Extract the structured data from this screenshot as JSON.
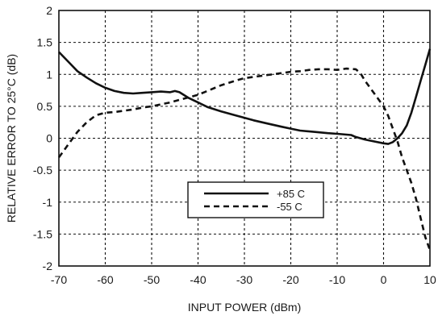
{
  "chart_data": {
    "type": "line",
    "xlabel": "INPUT POWER (dBm)",
    "ylabel": "RELATIVE ERROR TO 25°C  (dB)",
    "xlim": [
      -70,
      10
    ],
    "ylim": [
      -2,
      2
    ],
    "x_ticks": [
      -70,
      -60,
      -50,
      -40,
      -30,
      -20,
      -10,
      0,
      10
    ],
    "y_ticks": [
      -2,
      -1.5,
      -1,
      -0.5,
      0,
      0.5,
      1,
      1.5,
      2
    ],
    "x_tick_labels": [
      "-70",
      "-60",
      "-50",
      "-40",
      "-30",
      "-20",
      "-10",
      "0",
      "10"
    ],
    "y_tick_labels": [
      "-2",
      "-1.5",
      "-1",
      "-0.5",
      "0",
      "0.5",
      "1",
      "1.5",
      "2"
    ],
    "grid": "dashed",
    "legend_position": "lower-center",
    "series": [
      {
        "name": "+85 C",
        "style": "solid",
        "color": "#111111",
        "points": [
          [
            -70,
            1.35
          ],
          [
            -68,
            1.2
          ],
          [
            -66,
            1.05
          ],
          [
            -64,
            0.95
          ],
          [
            -62,
            0.86
          ],
          [
            -60,
            0.79
          ],
          [
            -58,
            0.74
          ],
          [
            -56,
            0.71
          ],
          [
            -54,
            0.7
          ],
          [
            -52,
            0.71
          ],
          [
            -50,
            0.72
          ],
          [
            -48,
            0.73
          ],
          [
            -46,
            0.72
          ],
          [
            -45,
            0.74
          ],
          [
            -44,
            0.72
          ],
          [
            -42,
            0.63
          ],
          [
            -40,
            0.56
          ],
          [
            -38,
            0.49
          ],
          [
            -35,
            0.42
          ],
          [
            -32,
            0.36
          ],
          [
            -30,
            0.32
          ],
          [
            -28,
            0.28
          ],
          [
            -25,
            0.23
          ],
          [
            -22,
            0.18
          ],
          [
            -20,
            0.15
          ],
          [
            -18,
            0.12
          ],
          [
            -15,
            0.1
          ],
          [
            -12,
            0.08
          ],
          [
            -10,
            0.07
          ],
          [
            -7,
            0.05
          ],
          [
            -6,
            0.02
          ],
          [
            -4,
            -0.02
          ],
          [
            -2,
            -0.05
          ],
          [
            0,
            -0.08
          ],
          [
            1,
            -0.09
          ],
          [
            2,
            -0.06
          ],
          [
            3,
            0.0
          ],
          [
            4,
            0.08
          ],
          [
            5,
            0.2
          ],
          [
            6,
            0.4
          ],
          [
            7,
            0.65
          ],
          [
            8,
            0.9
          ],
          [
            9,
            1.15
          ],
          [
            10,
            1.4
          ]
        ]
      },
      {
        "name": "-55 C",
        "style": "dashed",
        "color": "#111111",
        "points": [
          [
            -70,
            -0.3
          ],
          [
            -68,
            -0.1
          ],
          [
            -66,
            0.1
          ],
          [
            -64,
            0.25
          ],
          [
            -62,
            0.36
          ],
          [
            -60,
            0.4
          ],
          [
            -58,
            0.41
          ],
          [
            -56,
            0.43
          ],
          [
            -54,
            0.45
          ],
          [
            -52,
            0.48
          ],
          [
            -50,
            0.5
          ],
          [
            -48,
            0.53
          ],
          [
            -46,
            0.56
          ],
          [
            -44,
            0.6
          ],
          [
            -42,
            0.64
          ],
          [
            -40,
            0.68
          ],
          [
            -38,
            0.74
          ],
          [
            -35,
            0.83
          ],
          [
            -32,
            0.9
          ],
          [
            -30,
            0.94
          ],
          [
            -28,
            0.96
          ],
          [
            -26,
            0.98
          ],
          [
            -24,
            1.0
          ],
          [
            -22,
            1.02
          ],
          [
            -20,
            1.04
          ],
          [
            -18,
            1.05
          ],
          [
            -16,
            1.07
          ],
          [
            -14,
            1.08
          ],
          [
            -12,
            1.08
          ],
          [
            -10,
            1.07
          ],
          [
            -8,
            1.09
          ],
          [
            -6,
            1.08
          ],
          [
            -5,
            1.02
          ],
          [
            -4,
            0.9
          ],
          [
            -2,
            0.7
          ],
          [
            0,
            0.5
          ],
          [
            1,
            0.35
          ],
          [
            2,
            0.15
          ],
          [
            3,
            -0.05
          ],
          [
            4,
            -0.3
          ],
          [
            5,
            -0.5
          ],
          [
            6,
            -0.7
          ],
          [
            7,
            -0.95
          ],
          [
            8,
            -1.25
          ],
          [
            9,
            -1.55
          ],
          [
            10,
            -1.75
          ]
        ]
      }
    ]
  }
}
